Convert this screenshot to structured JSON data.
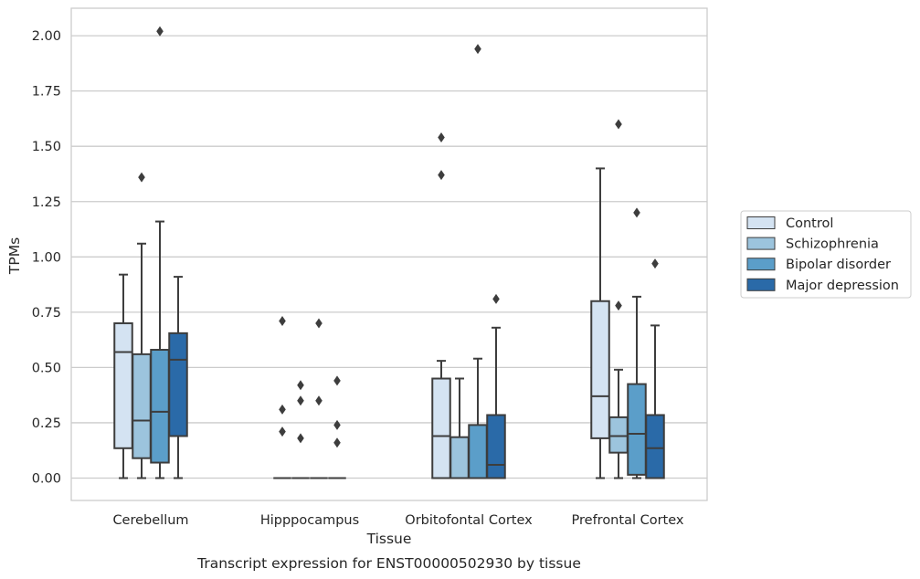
{
  "chart_data": {
    "type": "boxplot",
    "xlabel": "Tissue",
    "ylabel": "TPMs",
    "caption": "Transcript expression for ENST00000502930 by tissue",
    "ylim": [
      -0.1,
      2.12
    ],
    "yticks": [
      0.0,
      0.25,
      0.5,
      0.75,
      1.0,
      1.25,
      1.5,
      1.75,
      2.0
    ],
    "ytick_labels": [
      "0.00",
      "0.25",
      "0.50",
      "0.75",
      "1.00",
      "1.25",
      "1.50",
      "1.75",
      "2.00"
    ],
    "grid": "horizontal",
    "legend_position": "right",
    "categories": [
      "Cerebellum",
      "Hipppocampus",
      "Orbitofontal Cortex",
      "Prefrontal Cortex"
    ],
    "series": [
      {
        "name": "Control",
        "color": "#d4e3f2",
        "boxes": [
          {
            "whislo": 0.0,
            "q1": 0.135,
            "med": 0.57,
            "q3": 0.7,
            "whishi": 0.92,
            "fliers": []
          },
          {
            "whislo": 0.0,
            "q1": 0.0,
            "med": 0.0,
            "q3": 0.0,
            "whishi": 0.0,
            "fliers": [
              0.21,
              0.31,
              0.71
            ]
          },
          {
            "whislo": 0.0,
            "q1": 0.0,
            "med": 0.19,
            "q3": 0.45,
            "whishi": 0.53,
            "fliers": [
              1.37,
              1.54
            ]
          },
          {
            "whislo": 0.0,
            "q1": 0.18,
            "med": 0.37,
            "q3": 0.8,
            "whishi": 1.4,
            "fliers": []
          }
        ]
      },
      {
        "name": "Schizophrenia",
        "color": "#9cc4dd",
        "boxes": [
          {
            "whislo": 0.0,
            "q1": 0.09,
            "med": 0.26,
            "q3": 0.56,
            "whishi": 1.06,
            "fliers": [
              1.36
            ]
          },
          {
            "whislo": 0.0,
            "q1": 0.0,
            "med": 0.0,
            "q3": 0.0,
            "whishi": 0.0,
            "fliers": [
              0.18,
              0.35,
              0.42
            ]
          },
          {
            "whislo": 0.0,
            "q1": 0.0,
            "med": 0.0,
            "q3": 0.185,
            "whishi": 0.45,
            "fliers": []
          },
          {
            "whislo": 0.0,
            "q1": 0.115,
            "med": 0.19,
            "q3": 0.275,
            "whishi": 0.49,
            "fliers": [
              0.78,
              1.6
            ]
          }
        ]
      },
      {
        "name": "Bipolar disorder",
        "color": "#5b9ec9",
        "boxes": [
          {
            "whislo": 0.0,
            "q1": 0.07,
            "med": 0.3,
            "q3": 0.58,
            "whishi": 1.16,
            "fliers": [
              2.02
            ]
          },
          {
            "whislo": 0.0,
            "q1": 0.0,
            "med": 0.0,
            "q3": 0.0,
            "whishi": 0.0,
            "fliers": [
              0.35,
              0.7
            ]
          },
          {
            "whislo": 0.0,
            "q1": 0.0,
            "med": 0.0,
            "q3": 0.24,
            "whishi": 0.54,
            "fliers": [
              1.94
            ]
          },
          {
            "whislo": 0.0,
            "q1": 0.015,
            "med": 0.2,
            "q3": 0.425,
            "whishi": 0.82,
            "fliers": [
              1.2
            ]
          }
        ]
      },
      {
        "name": "Major depression",
        "color": "#2a6aa8",
        "boxes": [
          {
            "whislo": 0.0,
            "q1": 0.19,
            "med": 0.535,
            "q3": 0.655,
            "whishi": 0.91,
            "fliers": []
          },
          {
            "whislo": 0.0,
            "q1": 0.0,
            "med": 0.0,
            "q3": 0.0,
            "whishi": 0.0,
            "fliers": [
              0.16,
              0.24,
              0.44
            ]
          },
          {
            "whislo": 0.0,
            "q1": 0.0,
            "med": 0.06,
            "q3": 0.285,
            "whishi": 0.68,
            "fliers": [
              0.81
            ]
          },
          {
            "whislo": 0.0,
            "q1": 0.0,
            "med": 0.135,
            "q3": 0.285,
            "whishi": 0.69,
            "fliers": [
              0.97
            ]
          }
        ]
      }
    ]
  }
}
